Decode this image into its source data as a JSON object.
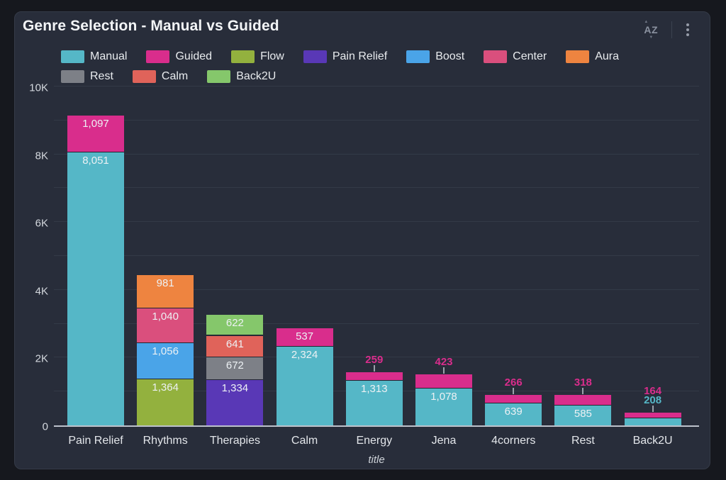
{
  "header": {
    "title": "Genre Selection - Manual vs Guided",
    "sort_label": "AZ"
  },
  "legend": [
    {
      "label": "Manual",
      "color": "#55b7c7"
    },
    {
      "label": "Guided",
      "color": "#d92d8c"
    },
    {
      "label": "Flow",
      "color": "#93b13e"
    },
    {
      "label": "Pain Relief",
      "color": "#5938b6"
    },
    {
      "label": "Boost",
      "color": "#4aa4e8"
    },
    {
      "label": "Center",
      "color": "#da4f7d"
    },
    {
      "label": "Aura",
      "color": "#ee8440"
    },
    {
      "label": "Rest",
      "color": "#7d8087"
    },
    {
      "label": "Calm",
      "color": "#e0635a"
    },
    {
      "label": "Back2U",
      "color": "#85c76b"
    }
  ],
  "chart_data": {
    "type": "bar",
    "stacked": true,
    "title": "Genre Selection - Manual vs Guided",
    "xlabel": "title",
    "ylabel": "",
    "ylim": [
      0,
      10000
    ],
    "grid_step": 1000,
    "legend_position": "top",
    "y_ticks": [
      {
        "value": 0,
        "label": "0"
      },
      {
        "value": 2000,
        "label": "2K"
      },
      {
        "value": 4000,
        "label": "4K"
      },
      {
        "value": 6000,
        "label": "6K"
      },
      {
        "value": 8000,
        "label": "8K"
      },
      {
        "value": 10000,
        "label": "10K"
      }
    ],
    "categories": [
      "Pain Relief",
      "Rhythms",
      "Therapies",
      "Calm",
      "Energy",
      "Jena",
      "4corners",
      "Rest",
      "Back2U"
    ],
    "bars": [
      {
        "category": "Pain Relief",
        "segments": [
          {
            "series": "Manual",
            "value": 8051,
            "label": "8,051",
            "label_inside": true
          },
          {
            "series": "Guided",
            "value": 1097,
            "label": "1,097",
            "label_inside": true
          }
        ]
      },
      {
        "category": "Rhythms",
        "segments": [
          {
            "series": "Flow",
            "value": 1364,
            "label": "1,364",
            "label_inside": true
          },
          {
            "series": "Boost",
            "value": 1056,
            "label": "1,056",
            "label_inside": true
          },
          {
            "series": "Center",
            "value": 1040,
            "label": "1,040",
            "label_inside": true
          },
          {
            "series": "Aura",
            "value": 981,
            "label": "981",
            "label_inside": true
          }
        ]
      },
      {
        "category": "Therapies",
        "segments": [
          {
            "series": "Pain Relief",
            "value": 1334,
            "label": "1,334",
            "label_inside": true
          },
          {
            "series": "Rest",
            "value": 672,
            "label": "672",
            "label_inside": true
          },
          {
            "series": "Calm",
            "value": 641,
            "label": "641",
            "label_inside": true
          },
          {
            "series": "Back2U",
            "value": 622,
            "label": "622",
            "label_inside": true
          }
        ]
      },
      {
        "category": "Calm",
        "segments": [
          {
            "series": "Manual",
            "value": 2324,
            "label": "2,324",
            "label_inside": true
          },
          {
            "series": "Guided",
            "value": 537,
            "label": "537",
            "label_inside": true
          }
        ]
      },
      {
        "category": "Energy",
        "segments": [
          {
            "series": "Manual",
            "value": 1313,
            "label": "1,313",
            "label_inside": true
          },
          {
            "series": "Guided",
            "value": 259,
            "label": "259",
            "label_inside": false
          }
        ]
      },
      {
        "category": "Jena",
        "segments": [
          {
            "series": "Manual",
            "value": 1078,
            "label": "1,078",
            "label_inside": true
          },
          {
            "series": "Guided",
            "value": 423,
            "label": "423",
            "label_inside": false
          }
        ]
      },
      {
        "category": "4corners",
        "segments": [
          {
            "series": "Manual",
            "value": 639,
            "label": "639",
            "label_inside": true
          },
          {
            "series": "Guided",
            "value": 266,
            "label": "266",
            "label_inside": false
          }
        ]
      },
      {
        "category": "Rest",
        "segments": [
          {
            "series": "Manual",
            "value": 585,
            "label": "585",
            "label_inside": true
          },
          {
            "series": "Guided",
            "value": 318,
            "label": "318",
            "label_inside": false
          }
        ]
      },
      {
        "category": "Back2U",
        "segments": [
          {
            "series": "Manual",
            "value": 208,
            "label": "208",
            "label_inside": false
          },
          {
            "series": "Guided",
            "value": 164,
            "label": "164",
            "label_inside": false
          }
        ]
      }
    ]
  },
  "colors": {
    "page_bg": "#16181e",
    "card_bg": "#282d3a",
    "gridline": "#333a47",
    "axis_line": "#bdc2cb",
    "text_primary": "#f3f5f7"
  }
}
